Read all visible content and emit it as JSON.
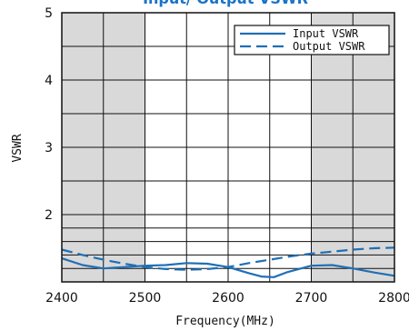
{
  "chart_data": {
    "type": "line",
    "title": "Input/ Output VSWR",
    "xlabel": "Frequency(MHz)",
    "ylabel": "VSWR",
    "xlim": [
      2400,
      2800
    ],
    "ylim": [
      1,
      5
    ],
    "xticks": [
      2400,
      2500,
      2600,
      2700,
      2800
    ],
    "yticks": [
      2,
      3,
      4,
      5
    ],
    "x_grid_step": 50,
    "y_grid_values": [
      1.2,
      1.4,
      1.6,
      1.8,
      2,
      2.5,
      3,
      3.5,
      4,
      4.5,
      5
    ],
    "shaded_x_ranges": [
      [
        2400,
        2500
      ],
      [
        2700,
        2800
      ]
    ],
    "grid": true,
    "legend_position": "top-right",
    "line_color": "#1f6fb5",
    "shade_color": "#d9d9d9",
    "title_color": "#1a73c8",
    "series": [
      {
        "name": "Input VSWR",
        "style": "solid",
        "x": [
          2400,
          2425,
          2450,
          2475,
          2500,
          2525,
          2550,
          2575,
          2600,
          2625,
          2640,
          2655,
          2670,
          2700,
          2725,
          2750,
          2775,
          2800
        ],
        "y": [
          1.35,
          1.25,
          1.2,
          1.22,
          1.24,
          1.25,
          1.28,
          1.27,
          1.22,
          1.13,
          1.08,
          1.07,
          1.14,
          1.24,
          1.25,
          1.2,
          1.14,
          1.09
        ]
      },
      {
        "name": "Output VSWR",
        "style": "dashed",
        "x": [
          2400,
          2425,
          2450,
          2475,
          2500,
          2525,
          2550,
          2575,
          2600,
          2625,
          2650,
          2675,
          2700,
          2725,
          2750,
          2775,
          2800
        ],
        "y": [
          1.48,
          1.4,
          1.33,
          1.27,
          1.22,
          1.19,
          1.18,
          1.19,
          1.22,
          1.28,
          1.33,
          1.38,
          1.42,
          1.45,
          1.48,
          1.5,
          1.51
        ]
      }
    ]
  }
}
